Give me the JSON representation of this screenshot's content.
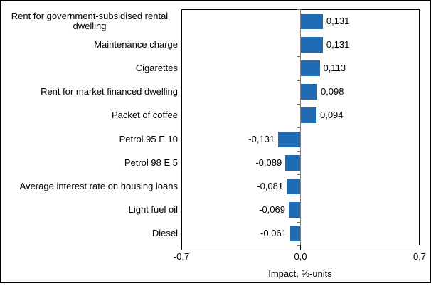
{
  "chart_data": {
    "type": "bar",
    "orientation": "horizontal",
    "title": "",
    "xlabel": "Impact, %-units",
    "ylabel": "",
    "xlim": [
      -0.7,
      0.7
    ],
    "gridline_interval": 0.1,
    "grid": true,
    "decimal_separator": ",",
    "categories": [
      "Rent for government-subsidised rental dwelling",
      "Maintenance charge",
      "Cigarettes",
      "Rent for market financed dwelling",
      "Packet of coffee",
      "Petrol 95 E 10",
      "Petrol 98 E 5",
      "Average interest rate on housing loans",
      "Light fuel oil",
      "Diesel"
    ],
    "values": [
      0.131,
      0.131,
      0.113,
      0.098,
      0.094,
      -0.131,
      -0.089,
      -0.081,
      -0.069,
      -0.061
    ],
    "value_labels": [
      "0,131",
      "0,131",
      "0,113",
      "0,098",
      "0,094",
      "-0,131",
      "-0,089",
      "-0,081",
      "-0,069",
      "-0,061"
    ],
    "xticks": [
      {
        "value": -0.7,
        "label": "-0,7"
      },
      {
        "value": 0.0,
        "label": "0,0"
      },
      {
        "value": 0.7,
        "label": "0,7"
      }
    ],
    "colors": {
      "bar": "#1f6cb4",
      "gridline": "#909090",
      "category_axis": "#808080",
      "category_tick": "#707070",
      "axis": "#000000",
      "text": "#000000",
      "background": "#ffffff"
    }
  }
}
